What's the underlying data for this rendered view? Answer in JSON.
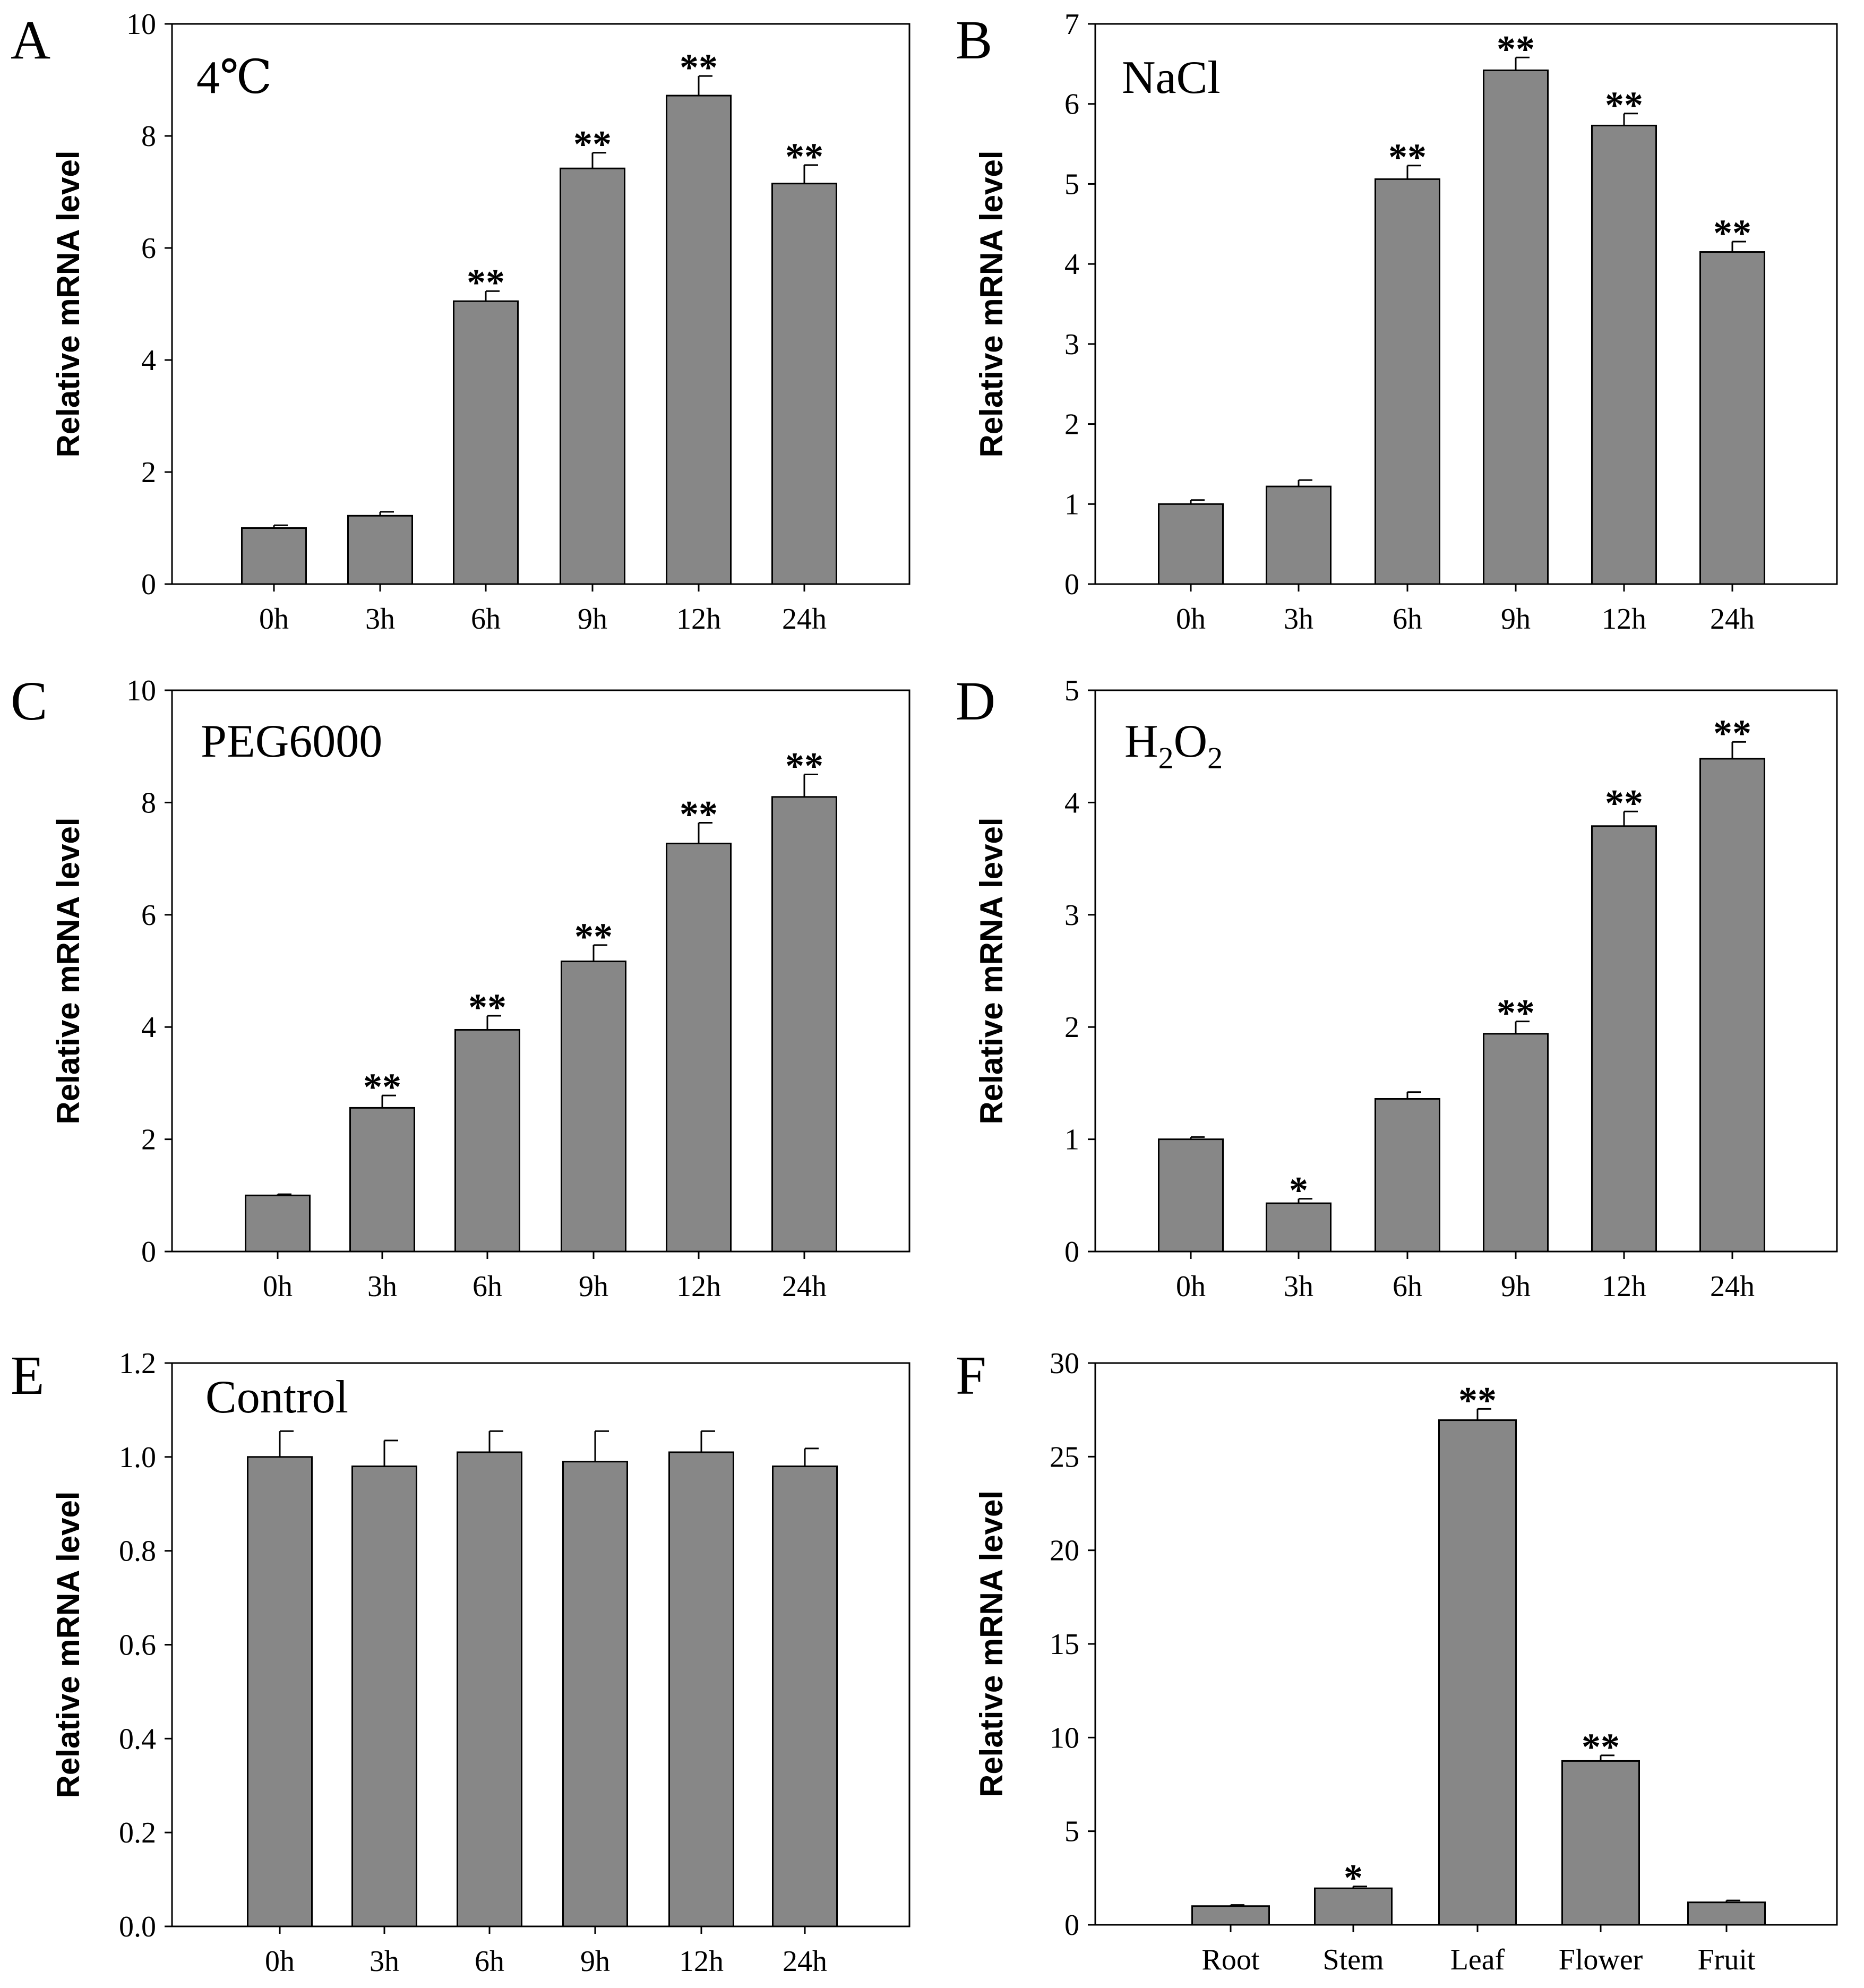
{
  "chart_data": [
    {
      "panel": "A",
      "type": "bar",
      "title": "4℃",
      "title_sub": "",
      "ylabel": "Relative mRNA level",
      "xlabel": "",
      "ylim": [
        0,
        10
      ],
      "yticks": [
        "0",
        "2",
        "4",
        "6",
        "8",
        "10"
      ],
      "categories": [
        "0h",
        "3h",
        "6h",
        "9h",
        "12h",
        "24h"
      ],
      "values": [
        1.0,
        1.22,
        5.05,
        7.42,
        8.72,
        7.15
      ],
      "errors": [
        0.05,
        0.07,
        0.18,
        0.28,
        0.35,
        0.33
      ],
      "significance": [
        "",
        "",
        "**",
        "**",
        "**",
        "**"
      ]
    },
    {
      "panel": "B",
      "type": "bar",
      "title": "NaCl",
      "title_sub": "",
      "ylabel": "Relative mRNA level",
      "xlabel": "",
      "ylim": [
        0,
        7
      ],
      "yticks": [
        "0",
        "1",
        "2",
        "3",
        "4",
        "5",
        "6",
        "7"
      ],
      "categories": [
        "0h",
        "3h",
        "6h",
        "9h",
        "12h",
        "24h"
      ],
      "values": [
        1.0,
        1.22,
        5.06,
        6.42,
        5.73,
        4.15
      ],
      "errors": [
        0.05,
        0.08,
        0.17,
        0.16,
        0.15,
        0.13
      ],
      "significance": [
        "",
        "",
        "**",
        "**",
        "**",
        "**"
      ]
    },
    {
      "panel": "C",
      "type": "bar",
      "title": "PEG6000",
      "title_sub": "",
      "ylabel": "Relative mRNA level",
      "xlabel": "",
      "ylim": [
        0,
        10
      ],
      "yticks": [
        "0",
        "2",
        "4",
        "6",
        "8",
        "10"
      ],
      "categories": [
        "0h",
        "3h",
        "6h",
        "9h",
        "12h",
        "24h"
      ],
      "values": [
        1.0,
        2.56,
        3.95,
        5.17,
        7.27,
        8.1
      ],
      "errors": [
        0.02,
        0.22,
        0.25,
        0.29,
        0.37,
        0.4
      ],
      "significance": [
        "",
        "**",
        "**",
        "**",
        "**",
        "**"
      ]
    },
    {
      "panel": "D",
      "type": "bar",
      "title": "H",
      "title_sub": "2",
      "title_mid": "O",
      "title_sub2": "2",
      "ylabel": "Relative mRNA level",
      "xlabel": "",
      "ylim": [
        0,
        5
      ],
      "yticks": [
        "0",
        "1",
        "2",
        "3",
        "4",
        "5"
      ],
      "categories": [
        "0h",
        "3h",
        "6h",
        "9h",
        "12h",
        "24h"
      ],
      "values": [
        1.0,
        0.43,
        1.36,
        1.94,
        3.79,
        4.39
      ],
      "errors": [
        0.02,
        0.04,
        0.06,
        0.11,
        0.13,
        0.15
      ],
      "significance": [
        "",
        "*",
        "",
        "**",
        "**",
        "**"
      ]
    },
    {
      "panel": "E",
      "type": "bar",
      "title": "Control",
      "title_sub": "",
      "ylabel": "Relative mRNA level",
      "xlabel": "",
      "ylim": [
        0,
        1.2
      ],
      "yticks": [
        "0.0",
        "0.2",
        "0.4",
        "0.6",
        "0.8",
        "1.0",
        "1.2"
      ],
      "categories": [
        "0h",
        "3h",
        "6h",
        "9h",
        "12h",
        "24h"
      ],
      "values": [
        1.0,
        0.98,
        1.01,
        0.99,
        1.01,
        0.98
      ],
      "errors": [
        0.055,
        0.055,
        0.045,
        0.065,
        0.045,
        0.038
      ],
      "significance": [
        "",
        "",
        "",
        "",
        "",
        ""
      ]
    },
    {
      "panel": "F",
      "type": "bar",
      "title": "",
      "title_sub": "",
      "ylabel": "Relative mRNA level",
      "xlabel": "",
      "ylim": [
        0,
        30
      ],
      "yticks": [
        "0",
        "5",
        "10",
        "15",
        "20",
        "25",
        "30"
      ],
      "categories": [
        "Root",
        "Stem",
        "Leaf",
        "Flower",
        "Fruit"
      ],
      "values": [
        1.0,
        1.95,
        26.95,
        8.75,
        1.2
      ],
      "errors": [
        0.06,
        0.1,
        0.6,
        0.3,
        0.1
      ],
      "significance": [
        "",
        "*",
        "**",
        "**",
        ""
      ]
    }
  ],
  "colors": {
    "bar": "#878787",
    "stroke": "#000000",
    "background": "#ffffff"
  }
}
